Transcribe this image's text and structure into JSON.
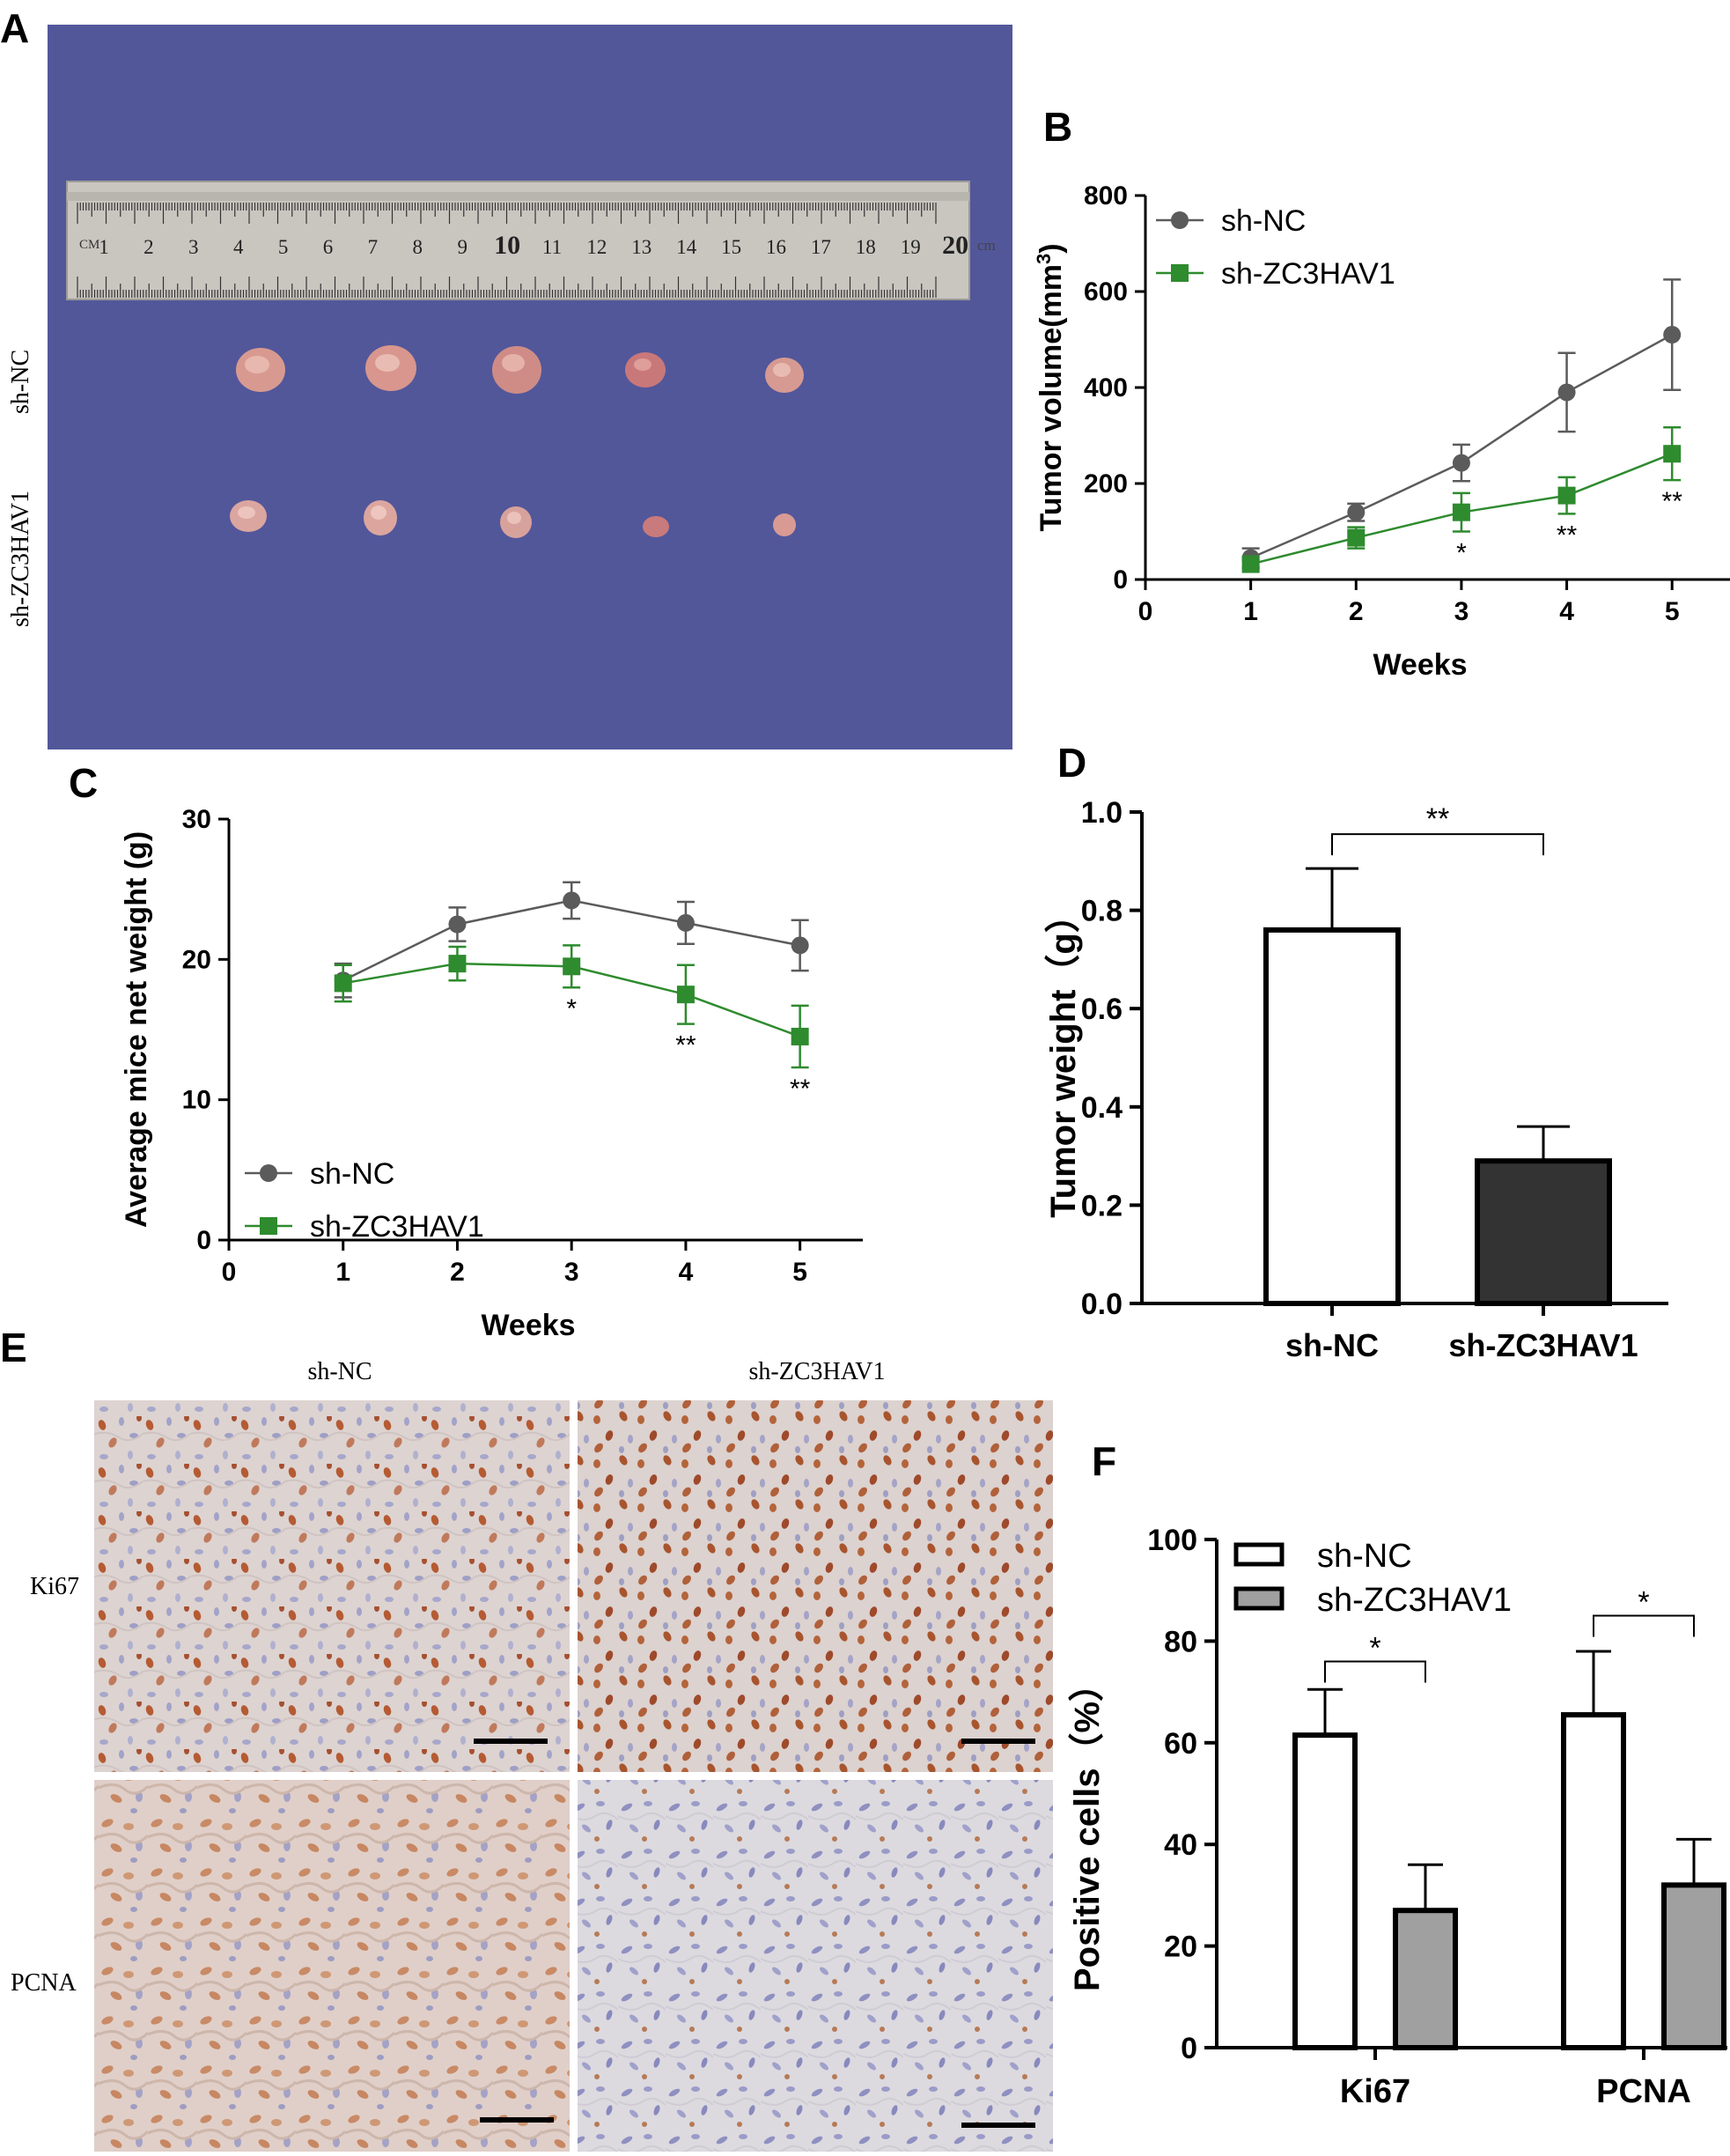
{
  "panels": {
    "A": {
      "letter": "A",
      "row_labels": [
        "sh-NC",
        "sh-ZC3HAV1"
      ],
      "ruler_unit_left": "CM",
      "ruler_unit_right": "cm",
      "ruler_numbers": [
        "1",
        "2",
        "3",
        "4",
        "5",
        "6",
        "7",
        "8",
        "9",
        "10",
        "11",
        "12",
        "13",
        "14",
        "15",
        "16",
        "17",
        "18",
        "19",
        "20"
      ]
    },
    "E": {
      "letter": "E",
      "col_labels": [
        "sh-NC",
        "sh-ZC3HAV1"
      ],
      "row_labels": [
        "Ki67",
        "PCNA"
      ]
    }
  },
  "chart_data": [
    {
      "id": "B",
      "letter": "B",
      "type": "line",
      "xlabel": "Weeks",
      "ylabel": "Tumor volume(mm",
      "ylabel_sup": "3",
      "ylabel_close": ")",
      "x_ticks": [
        "0",
        "1",
        "2",
        "3",
        "4",
        "5"
      ],
      "y_ticks": [
        "0",
        "200",
        "400",
        "600",
        "800"
      ],
      "xlim": [
        0,
        5.55
      ],
      "ylim": [
        0,
        800
      ],
      "x": [
        1,
        2,
        3,
        4,
        5
      ],
      "series": [
        {
          "name": "sh-NC",
          "color": "#5b5b5b",
          "marker": "circle",
          "values": [
            45,
            140,
            243,
            390,
            510
          ],
          "errors": [
            20,
            18,
            38,
            82,
            115
          ]
        },
        {
          "name": "sh-ZC3HAV1",
          "color": "#2e8b2e",
          "marker": "square",
          "values": [
            32,
            87,
            140,
            175,
            262
          ],
          "errors": [
            8,
            22,
            40,
            38,
            55
          ]
        }
      ],
      "annotations": [
        {
          "x": 3,
          "text": "*"
        },
        {
          "x": 4,
          "text": "**"
        },
        {
          "x": 5,
          "text": "**"
        }
      ],
      "legend": "top-left"
    },
    {
      "id": "C",
      "letter": "C",
      "type": "line",
      "xlabel": "Weeks",
      "ylabel": "Average mice net weight (g)",
      "x_ticks": [
        "0",
        "1",
        "2",
        "3",
        "4",
        "5"
      ],
      "y_ticks": [
        "0",
        "10",
        "20",
        "30"
      ],
      "xlim": [
        0,
        5.55
      ],
      "ylim": [
        0,
        30
      ],
      "x": [
        1,
        2,
        3,
        4,
        5
      ],
      "series": [
        {
          "name": "sh-NC",
          "color": "#5b5b5b",
          "marker": "circle",
          "values": [
            18.5,
            22.5,
            24.2,
            22.6,
            21.0
          ],
          "errors": [
            1.2,
            1.2,
            1.3,
            1.5,
            1.8
          ]
        },
        {
          "name": "sh-ZC3HAV1",
          "color": "#2e8b2e",
          "marker": "square",
          "values": [
            18.3,
            19.7,
            19.5,
            17.5,
            14.5
          ],
          "errors": [
            1.3,
            1.2,
            1.5,
            2.1,
            2.2
          ]
        }
      ],
      "annotations": [
        {
          "x": 3,
          "text": "*"
        },
        {
          "x": 4,
          "text": "**"
        },
        {
          "x": 5,
          "text": "**"
        }
      ],
      "legend": "bottom-left"
    },
    {
      "id": "D",
      "letter": "D",
      "type": "bar",
      "xlabel": "",
      "ylabel": "Tumor weight（g）",
      "categories": [
        "sh-NC",
        "sh-ZC3HAV1"
      ],
      "values": [
        0.76,
        0.29
      ],
      "errors": [
        0.125,
        0.07
      ],
      "colors": [
        "#ffffff",
        "#333333"
      ],
      "y_ticks": [
        "0.0",
        "0.2",
        "0.4",
        "0.6",
        "0.8",
        "1.0"
      ],
      "ylim": [
        0,
        1.0
      ],
      "significance": [
        {
          "from": 0,
          "to": 1,
          "text": "**",
          "y": 0.955
        }
      ]
    },
    {
      "id": "F",
      "letter": "F",
      "type": "bar",
      "xlabel": "",
      "ylabel": "Positive cells（%）",
      "categories": [
        "Ki67",
        "PCNA"
      ],
      "series": [
        {
          "name": "sh-NC",
          "color": "#ffffff",
          "values": [
            61.5,
            65.5
          ],
          "errors": [
            9,
            12.5
          ]
        },
        {
          "name": "sh-ZC3HAV1",
          "color": "#a0a0a0",
          "values": [
            27,
            32
          ],
          "errors": [
            9,
            9
          ]
        }
      ],
      "y_ticks": [
        "0",
        "20",
        "40",
        "60",
        "80",
        "100"
      ],
      "ylim": [
        0,
        100
      ],
      "significance": [
        {
          "category": 0,
          "text": "*",
          "y": 76
        },
        {
          "category": 1,
          "text": "*",
          "y": 85
        }
      ],
      "legend": "top-left"
    }
  ]
}
